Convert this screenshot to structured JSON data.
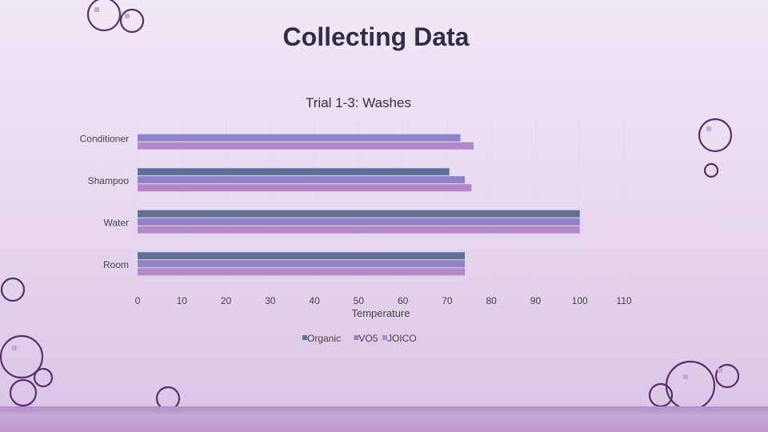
{
  "slide": {
    "title": "Collecting Data"
  },
  "colors": {
    "organic": "#5f7096",
    "vo5": "#8e82c8",
    "joico": "#b487c8",
    "text": "#444444",
    "circle_stroke": "#5a2e68"
  },
  "chart_data": {
    "type": "bar",
    "orientation": "horizontal",
    "title": "Trial 1-3: Washes",
    "xlabel": "Temperature",
    "ylabel": "",
    "categories": [
      "Conditioner",
      "Shampoo",
      "Water",
      "Room"
    ],
    "series": [
      {
        "name": "Organic",
        "values": [
          null,
          70.5,
          100,
          74
        ]
      },
      {
        "name": "VO5",
        "values": [
          73,
          74,
          100,
          74
        ]
      },
      {
        "name": "JOICO",
        "values": [
          76,
          75.5,
          100,
          74
        ]
      }
    ],
    "xlim": [
      0,
      110
    ],
    "xticks": [
      "0",
      "10",
      "20",
      "30",
      "40",
      "50",
      "60",
      "70",
      "80",
      "90",
      "100",
      "110"
    ],
    "grid": true,
    "legend_position": "bottom"
  }
}
